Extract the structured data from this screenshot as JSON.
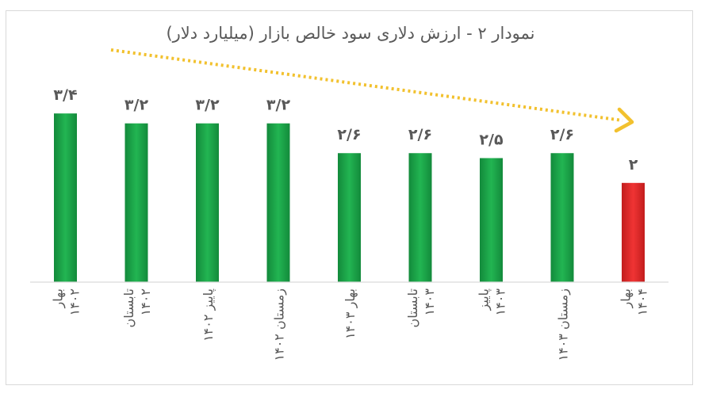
{
  "chart_data": {
    "type": "bar",
    "title": "نمودار ۲ - ارزش دلاری سود خالص بازار (میلیارد دلار)",
    "categories": [
      [
        "بهار",
        "۱۴۰۲"
      ],
      [
        "تابستان",
        "۱۴۰۲"
      ],
      [
        "پاییز ۱۴۰۲"
      ],
      [
        "زمستان ۱۴۰۲"
      ],
      [
        "بهار ۱۴۰۳"
      ],
      [
        "تابستان",
        "۱۴۰۳"
      ],
      [
        "پاییز",
        "۱۴۰۳"
      ],
      [
        "زمستان ۱۴۰۳"
      ],
      [
        "بهار",
        "۱۴۰۴"
      ]
    ],
    "values": [
      3.4,
      3.2,
      3.2,
      3.2,
      2.6,
      2.6,
      2.5,
      2.6,
      2
    ],
    "value_labels": [
      "۳/۴",
      "۳/۲",
      "۳/۲",
      "۳/۲",
      "۲/۶",
      "۲/۶",
      "۲/۵",
      "۲/۶",
      "۲"
    ],
    "bar_colors": [
      "#1aa64a",
      "#1aa64a",
      "#1aa64a",
      "#1aa64a",
      "#1aa64a",
      "#1aa64a",
      "#1aa64a",
      "#1aa64a",
      "#e52b2b"
    ],
    "trend_color": "#f2c12e",
    "trend": "decreasing",
    "ylim": [
      0,
      3.6
    ],
    "grid": false,
    "legend": "none"
  }
}
